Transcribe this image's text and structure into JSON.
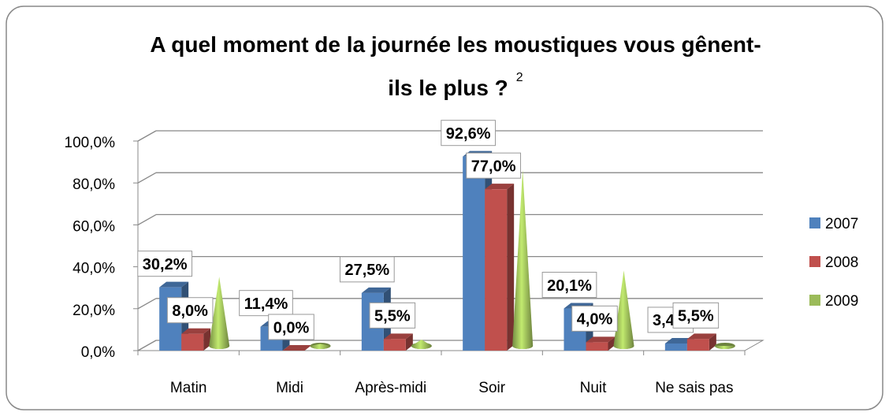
{
  "chart_data": {
    "type": "bar3d",
    "title": "A quel moment de la journée les moustiques vous gênent-ils le plus ?",
    "annotation": "2",
    "categories": [
      "Matin",
      "Midi",
      "Après-midi",
      "Soir",
      "Nuit",
      "Ne sais pas"
    ],
    "series": [
      {
        "name": "2007",
        "color": "#4f81bd",
        "shape": "bar",
        "values": [
          30.2,
          11.4,
          27.5,
          92.6,
          20.1,
          3.4
        ],
        "value_labels": [
          "30,2%",
          "11,4%",
          "27,5%",
          "92,6%",
          "20,1%",
          "3,4%"
        ]
      },
      {
        "name": "2008",
        "color": "#c0504d",
        "shape": "bar",
        "values": [
          8.0,
          0.0,
          5.5,
          77.0,
          4.0,
          5.5
        ],
        "value_labels": [
          "8,0%",
          "0,0%",
          "5,5%",
          "77,0%",
          "4,0%",
          "5,5%"
        ]
      },
      {
        "name": "2009",
        "color": "#9bbb59",
        "shape": "cone",
        "values": [
          33,
          1,
          3,
          84,
          36,
          0
        ]
      }
    ],
    "ylim": [
      0,
      100
    ],
    "yticks": [
      {
        "value": 0,
        "label": "0,0%"
      },
      {
        "value": 20,
        "label": "20,0%"
      },
      {
        "value": 40,
        "label": "40,0%"
      },
      {
        "value": 60,
        "label": "60,0%"
      },
      {
        "value": 80,
        "label": "80,0%"
      },
      {
        "value": 100,
        "label": "100,0%"
      }
    ],
    "grid": true,
    "legend": "right"
  }
}
